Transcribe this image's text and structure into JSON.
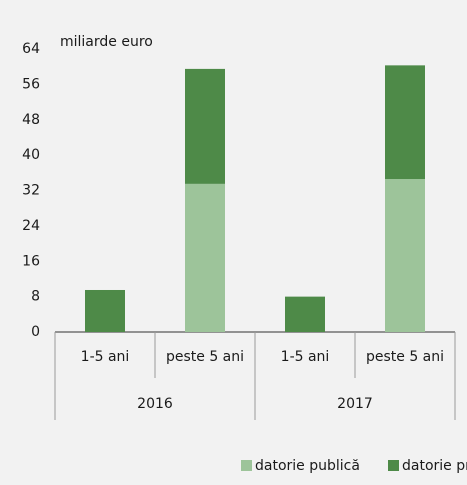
{
  "chart_data": {
    "type": "stacked_bar",
    "y_label": "miliarde euro",
    "categories": [
      "1-5 ani",
      "peste 5 ani",
      "1-5 ani",
      "peste 5 ani"
    ],
    "groups": [
      "2016",
      "2017"
    ],
    "series": [
      {
        "name": "datorie publică",
        "color": "#9dc49a",
        "values": [
          null,
          33.5,
          null,
          34.6
        ]
      },
      {
        "name": "datorie privată",
        "color": "#4e8a48",
        "values": [
          9.5,
          26,
          8,
          25.7
        ]
      }
    ],
    "ylim": [
      0,
      64
    ],
    "yticks": [
      0,
      8,
      16,
      24,
      32,
      40,
      48,
      56,
      64
    ],
    "legend": "bottom"
  }
}
